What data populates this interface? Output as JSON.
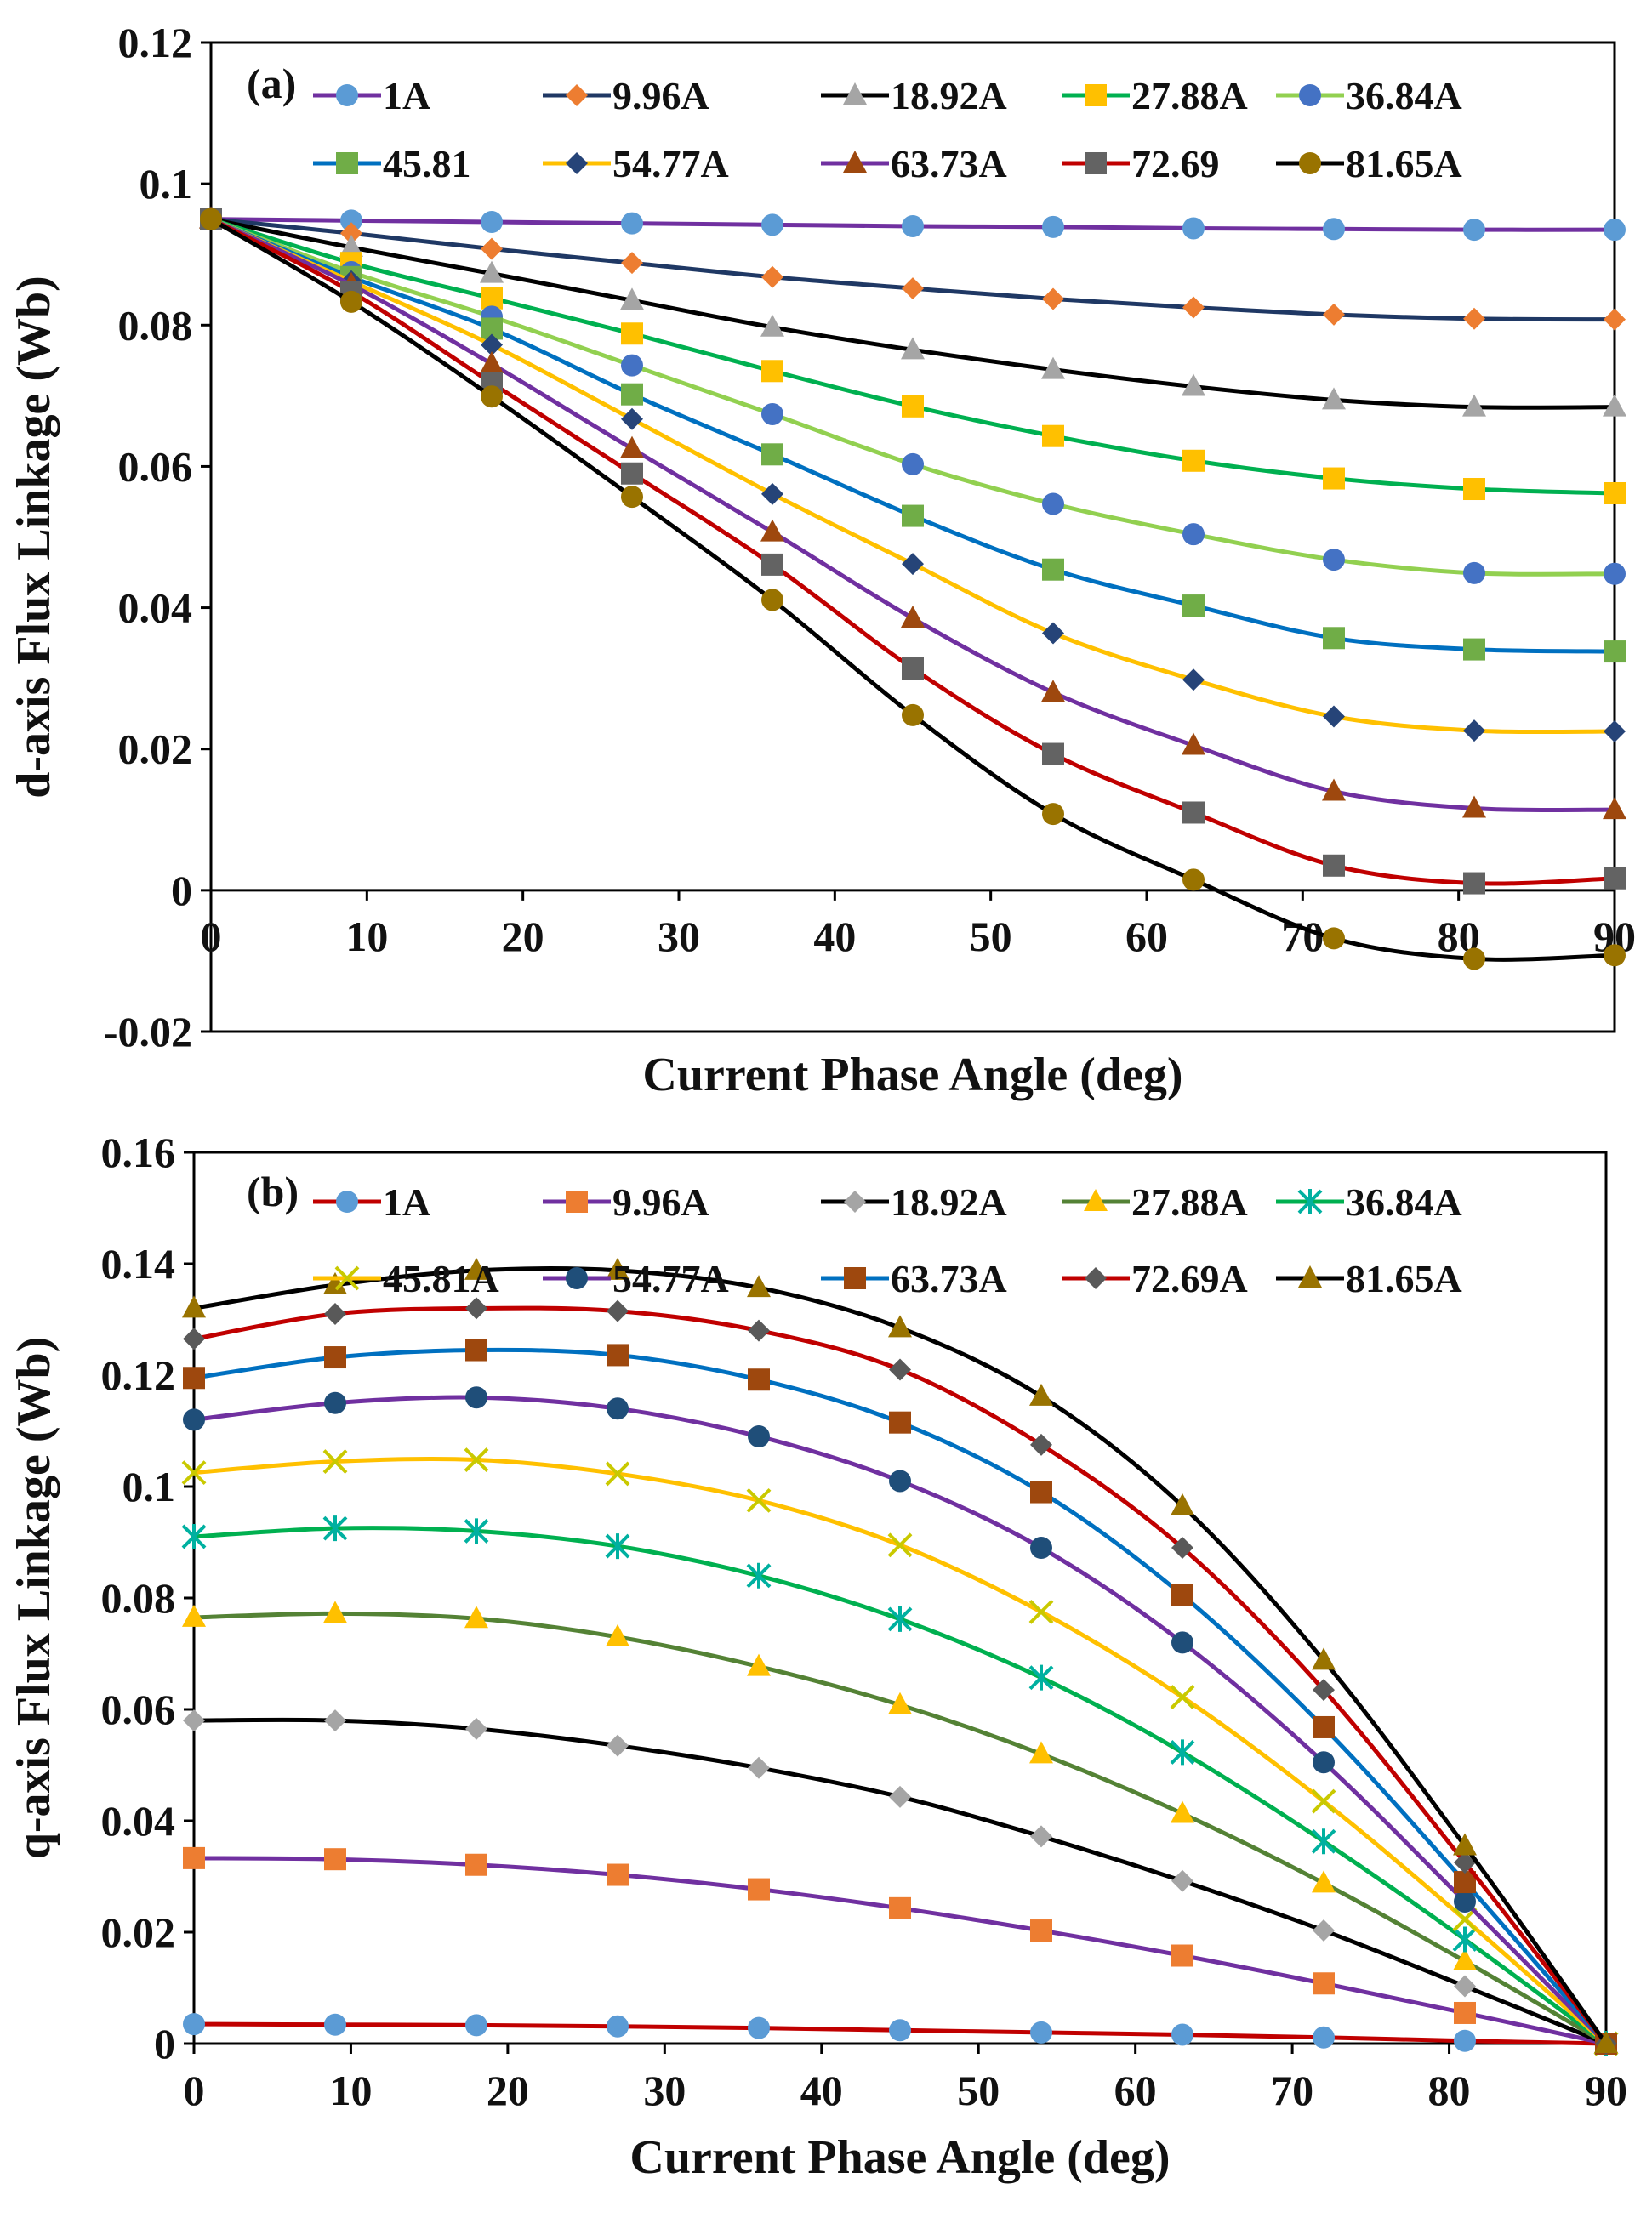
{
  "chart_data": [
    {
      "type": "line",
      "panel_label": "(a)",
      "xlabel": "Current Phase Angle (deg)",
      "ylabel": "d-axis Flux Linkage (Wb)",
      "xlim": [
        0,
        90
      ],
      "ylim": [
        -0.02,
        0.12
      ],
      "x_ticks": [
        0,
        10,
        20,
        30,
        40,
        50,
        60,
        70,
        80,
        90
      ],
      "x_tick_labels": [
        "0",
        "10",
        "20",
        "30",
        "40",
        "50",
        "60",
        "70",
        "80",
        "90"
      ],
      "y_ticks": [
        -0.02,
        0,
        0.02,
        0.04,
        0.06,
        0.08,
        0.1,
        0.12
      ],
      "y_tick_labels": [
        "-0.02",
        "0",
        "0.02",
        "0.04",
        "0.06",
        "0.08",
        "0.1",
        "0.12"
      ],
      "x": [
        0,
        9,
        18,
        27,
        36,
        45,
        54,
        63,
        72,
        81,
        90
      ],
      "series": [
        {
          "name": "1A",
          "line_color": "#7030a0",
          "marker": "circle",
          "marker_color": "#5b9bd5",
          "values": [
            0.095,
            0.0948,
            0.0946,
            0.0944,
            0.0942,
            0.094,
            0.0939,
            0.0937,
            0.0936,
            0.0935,
            0.0935
          ]
        },
        {
          "name": "9.96A",
          "line_color": "#1f3864",
          "marker": "diamond",
          "marker_color": "#ed7d31",
          "values": [
            0.095,
            0.093,
            0.0908,
            0.0888,
            0.0868,
            0.0852,
            0.0837,
            0.0825,
            0.0815,
            0.0809,
            0.0808
          ]
        },
        {
          "name": "18.92A",
          "line_color": "#000000",
          "marker": "triangle",
          "marker_color": "#a5a5a5",
          "values": [
            0.095,
            0.091,
            0.0873,
            0.0835,
            0.0797,
            0.0765,
            0.0737,
            0.0713,
            0.0694,
            0.0684,
            0.0684
          ]
        },
        {
          "name": "27.88A",
          "line_color": "#00b050",
          "marker": "square",
          "marker_color": "#ffc000",
          "values": [
            0.095,
            0.0888,
            0.0838,
            0.0788,
            0.0735,
            0.0685,
            0.0643,
            0.0608,
            0.0583,
            0.0568,
            0.0562
          ]
        },
        {
          "name": "36.84A",
          "line_color": "#92d050",
          "marker": "circle",
          "marker_color": "#4472c4",
          "values": [
            0.095,
            0.0875,
            0.0812,
            0.0743,
            0.0674,
            0.0603,
            0.0547,
            0.0504,
            0.0468,
            0.0449,
            0.0448
          ]
        },
        {
          "name": "45.81",
          "line_color": "#0070c0",
          "marker": "square",
          "marker_color": "#70ad47",
          "values": [
            0.095,
            0.0868,
            0.0795,
            0.0702,
            0.0617,
            0.053,
            0.0454,
            0.0403,
            0.0357,
            0.0341,
            0.0338
          ]
        },
        {
          "name": "54.77A",
          "line_color": "#ffc000",
          "marker": "diamond",
          "marker_color": "#264478",
          "values": [
            0.095,
            0.0862,
            0.0772,
            0.0667,
            0.0561,
            0.0462,
            0.0364,
            0.0298,
            0.0246,
            0.0226,
            0.0225
          ]
        },
        {
          "name": "63.73A",
          "line_color": "#7030a0",
          "marker": "triangle",
          "marker_color": "#9e480e",
          "values": [
            0.095,
            0.0857,
            0.0745,
            0.0625,
            0.0507,
            0.0385,
            0.028,
            0.0205,
            0.014,
            0.0116,
            0.0114
          ]
        },
        {
          "name": "72.69",
          "line_color": "#c00000",
          "marker": "square",
          "marker_color": "#636363",
          "values": [
            0.095,
            0.0847,
            0.0718,
            0.059,
            0.0461,
            0.0314,
            0.0193,
            0.011,
            0.0035,
            0.001,
            0.0017
          ]
        },
        {
          "name": "81.65A",
          "line_color": "#000000",
          "marker": "circle",
          "marker_color": "#997300",
          "values": [
            0.095,
            0.0833,
            0.0699,
            0.0557,
            0.0411,
            0.0248,
            0.0108,
            0.0015,
            -0.0068,
            -0.0097,
            -0.0092
          ]
        }
      ]
    },
    {
      "type": "line",
      "panel_label": "(b)",
      "xlabel": "Current Phase Angle (deg)",
      "ylabel": "q-axis Flux Linkage (Wb)",
      "xlim": [
        0,
        90
      ],
      "ylim": [
        0,
        0.16
      ],
      "x_ticks": [
        0,
        10,
        20,
        30,
        40,
        50,
        60,
        70,
        80,
        90
      ],
      "x_tick_labels": [
        "0",
        "10",
        "20",
        "30",
        "40",
        "50",
        "60",
        "70",
        "80",
        "90"
      ],
      "y_ticks": [
        0,
        0.02,
        0.04,
        0.06,
        0.08,
        0.1,
        0.12,
        0.14,
        0.16
      ],
      "y_tick_labels": [
        "0",
        "0.02",
        "0.04",
        "0.06",
        "0.08",
        "0.1",
        "0.12",
        "0.14",
        "0.16"
      ],
      "x": [
        0,
        9,
        18,
        27,
        36,
        45,
        54,
        63,
        72,
        81,
        90
      ],
      "series": [
        {
          "name": "1A",
          "line_color": "#c00000",
          "marker": "circle",
          "marker_color": "#5b9bd5",
          "values": [
            0.0035,
            0.0034,
            0.0033,
            0.0031,
            0.0028,
            0.0024,
            0.002,
            0.0016,
            0.0011,
            0.0005,
            0.0
          ]
        },
        {
          "name": "9.96A",
          "line_color": "#7030a0",
          "marker": "square",
          "marker_color": "#ed7d31",
          "values": [
            0.0333,
            0.0331,
            0.0321,
            0.0303,
            0.0277,
            0.0243,
            0.0203,
            0.0158,
            0.0108,
            0.0055,
            0.0
          ]
        },
        {
          "name": "18.92A",
          "line_color": "#000000",
          "marker": "diamond",
          "marker_color": "#a5a5a5",
          "values": [
            0.058,
            0.058,
            0.0565,
            0.0535,
            0.0495,
            0.0443,
            0.0372,
            0.0292,
            0.0203,
            0.0103,
            0.0
          ]
        },
        {
          "name": "27.88A",
          "line_color": "#548235",
          "marker": "triangle",
          "marker_color": "#ffc000",
          "values": [
            0.0765,
            0.0772,
            0.0763,
            0.073,
            0.0677,
            0.0608,
            0.052,
            0.0413,
            0.0288,
            0.0148,
            0.0
          ]
        },
        {
          "name": "36.84A",
          "line_color": "#00b050",
          "marker": "asterisk",
          "marker_color": "#00b0a0",
          "values": [
            0.091,
            0.0925,
            0.092,
            0.0893,
            0.084,
            0.0762,
            0.0657,
            0.0523,
            0.0363,
            0.0187,
            0.0
          ]
        },
        {
          "name": "45.81A",
          "line_color": "#ffc000",
          "marker": "x",
          "marker_color": "#c9c900",
          "values": [
            0.1025,
            0.1045,
            0.1048,
            0.1023,
            0.0975,
            0.0895,
            0.0775,
            0.0622,
            0.0435,
            0.0223,
            0.0
          ]
        },
        {
          "name": "54.77A",
          "line_color": "#7030a0",
          "marker": "circle",
          "marker_color": "#1f4e79",
          "values": [
            0.112,
            0.115,
            0.116,
            0.114,
            0.109,
            0.101,
            0.089,
            0.072,
            0.0505,
            0.0255,
            0.0
          ]
        },
        {
          "name": "63.73A",
          "line_color": "#0070c0",
          "marker": "square",
          "marker_color": "#9e480e",
          "values": [
            0.1195,
            0.1232,
            0.1245,
            0.1236,
            0.1192,
            0.1115,
            0.099,
            0.0805,
            0.0568,
            0.029,
            0.0
          ]
        },
        {
          "name": "72.69A",
          "line_color": "#c00000",
          "marker": "diamond",
          "marker_color": "#595959",
          "values": [
            0.1265,
            0.131,
            0.132,
            0.1315,
            0.128,
            0.121,
            0.1075,
            0.089,
            0.0635,
            0.0325,
            0.0
          ]
        },
        {
          "name": "81.65A",
          "line_color": "#000000",
          "marker": "triangle",
          "marker_color": "#997300",
          "values": [
            0.132,
            0.1362,
            0.1388,
            0.1388,
            0.1357,
            0.1285,
            0.1162,
            0.0965,
            0.0688,
            0.0355,
            0.0
          ]
        }
      ]
    }
  ]
}
